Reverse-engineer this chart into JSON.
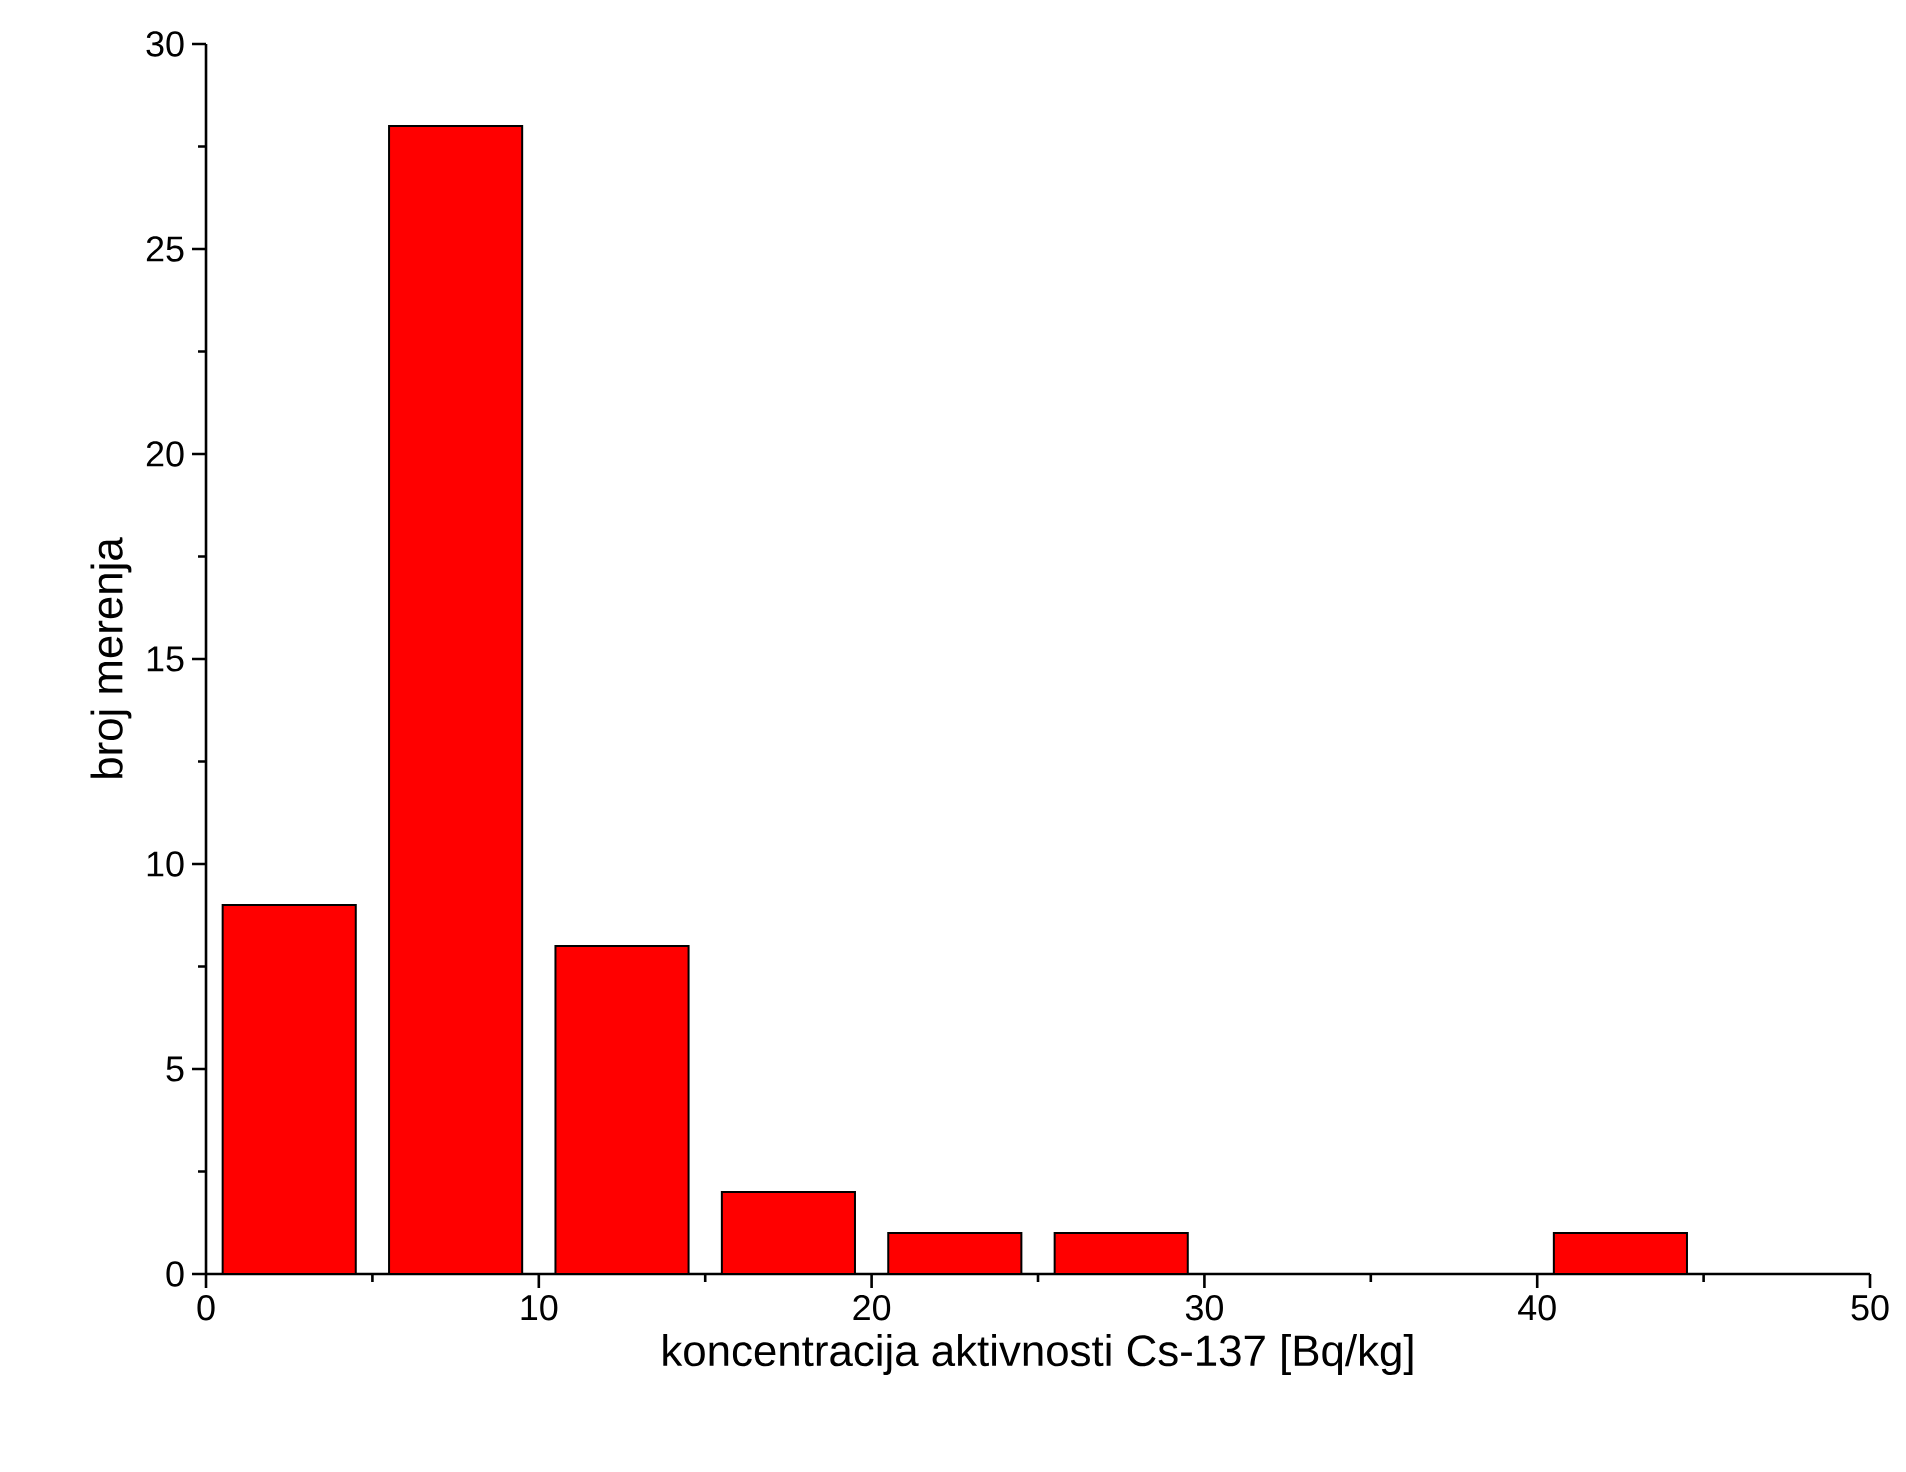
{
  "chart_data": {
    "type": "histogram",
    "xlabel": "koncentracija aktivnosti Cs-137 [Bq/kg]",
    "ylabel": "broj merenja",
    "bins": [
      0,
      5,
      10,
      15,
      20,
      25,
      30,
      35,
      40,
      45
    ],
    "values": [
      9,
      28,
      8,
      2,
      1,
      1,
      0,
      0,
      1
    ],
    "color": "#ff0000",
    "xlim": [
      0,
      50
    ],
    "ylim": [
      0,
      30
    ],
    "xticks": [
      0,
      10,
      20,
      30,
      40,
      50
    ],
    "yticks": [
      0,
      5,
      10,
      15,
      20,
      25,
      30
    ],
    "grid": false
  }
}
